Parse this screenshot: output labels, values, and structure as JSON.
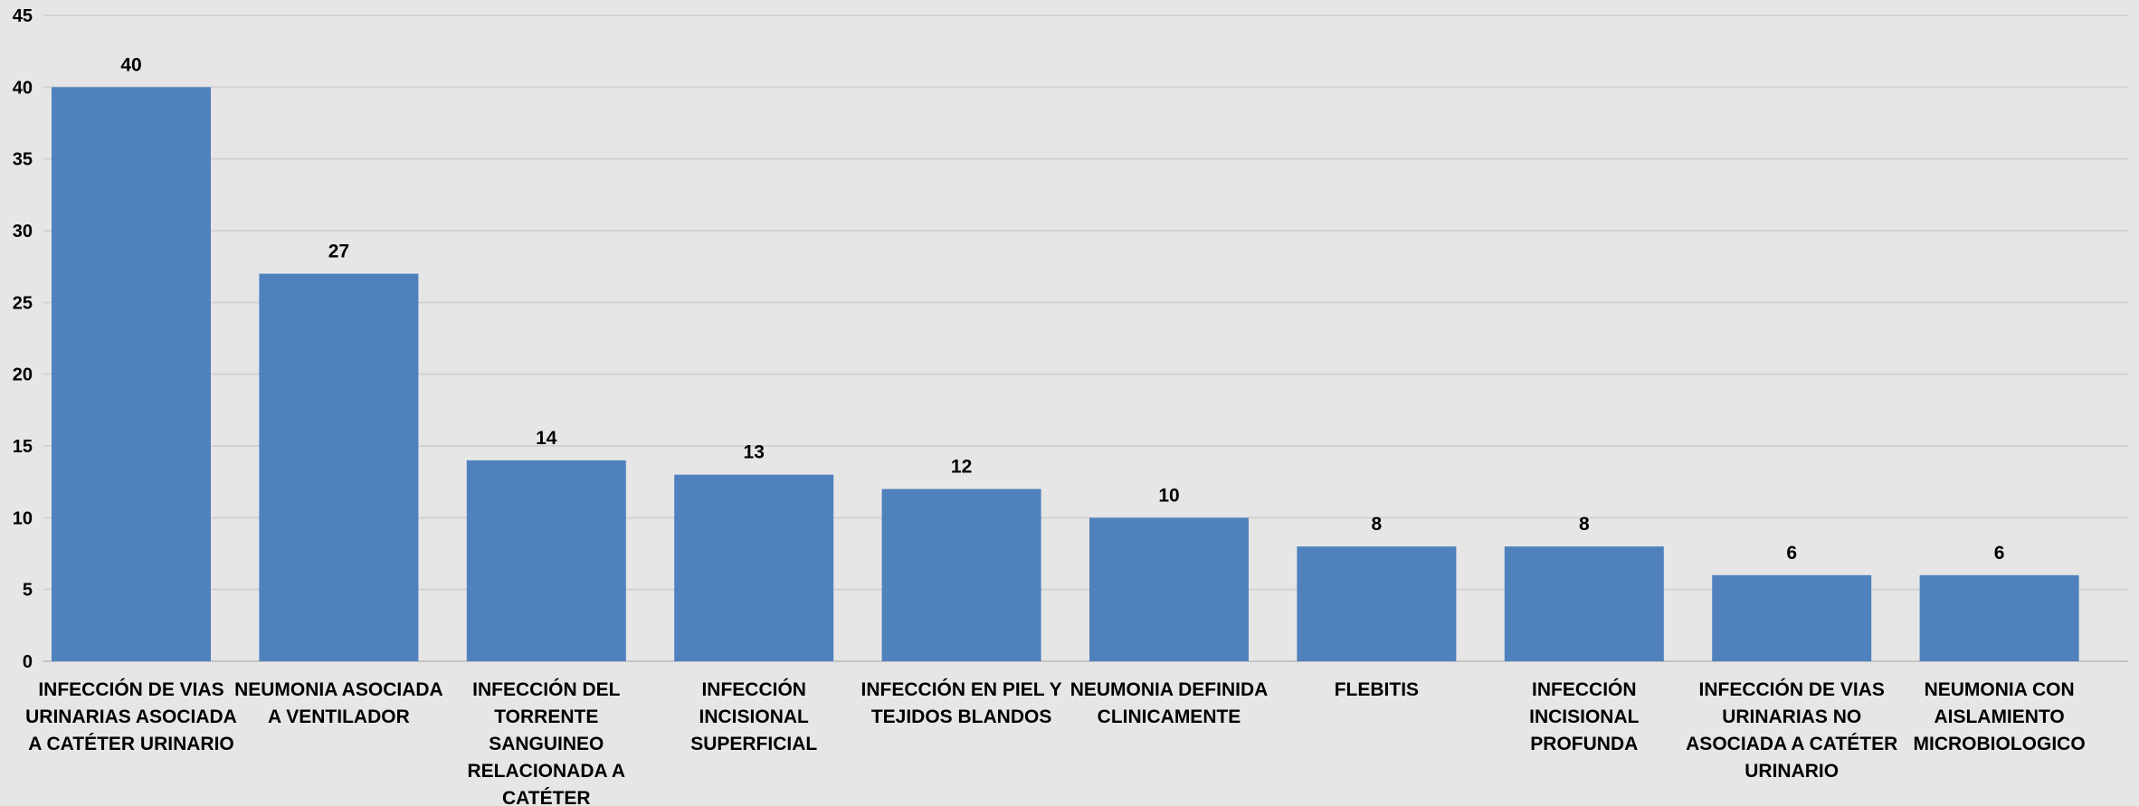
{
  "chart_data": {
    "type": "bar",
    "categories": [
      [
        "INFECCIÓN DE VIAS",
        "URINARIAS ASOCIADA",
        "A CATÉTER URINARIO"
      ],
      [
        "NEUMONIA ASOCIADA",
        "A VENTILADOR"
      ],
      [
        "INFECCIÓN DEL",
        "TORRENTE",
        "SANGUINEO",
        "RELACIONADA A",
        "CATÉTER"
      ],
      [
        "INFECCIÓN",
        "INCISIONAL",
        "SUPERFICIAL"
      ],
      [
        "INFECCIÓN EN PIEL Y",
        "TEJIDOS BLANDOS"
      ],
      [
        "NEUMONIA DEFINIDA",
        "CLINICAMENTE"
      ],
      [
        "FLEBITIS"
      ],
      [
        "INFECCIÓN",
        "INCISIONAL",
        "PROFUNDA"
      ],
      [
        "INFECCIÓN DE VIAS",
        "URINARIAS NO",
        "ASOCIADA A CATÉTER",
        "URINARIO"
      ],
      [
        "NEUMONIA CON",
        "AISLAMIENTO",
        "MICROBIOLOGICO"
      ]
    ],
    "values": [
      40,
      27,
      14,
      13,
      12,
      10,
      8,
      8,
      6,
      6
    ],
    "data_labels": [
      "40",
      "27",
      "14",
      "13",
      "12",
      "10",
      "8",
      "8",
      "6",
      "6"
    ],
    "ylim": [
      0,
      45
    ],
    "yticks": [
      "0",
      "5",
      "10",
      "15",
      "20",
      "25",
      "30",
      "35",
      "40",
      "45"
    ],
    "grid": true,
    "legend": "none",
    "title": "",
    "xlabel": "",
    "ylabel": "",
    "colors": {
      "bar": "#4f81bd",
      "background": "#e6e6e6",
      "grid": "#d2d2d2"
    }
  }
}
